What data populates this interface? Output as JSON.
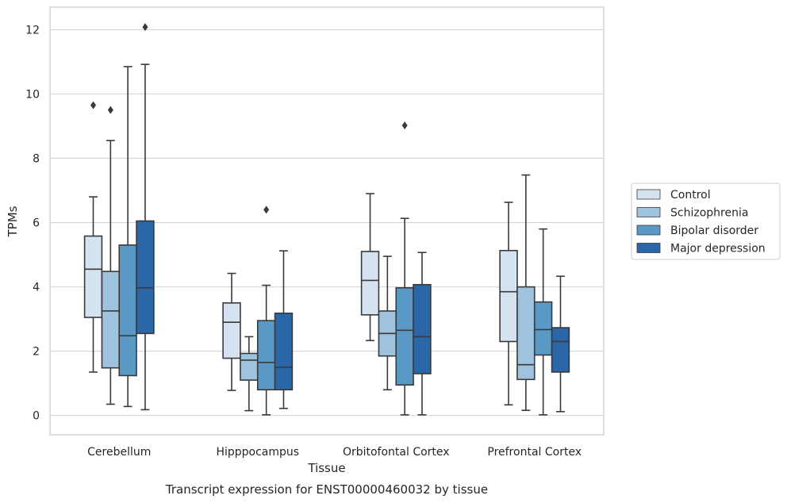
{
  "chart_data": {
    "type": "box",
    "xlabel": "Tissue",
    "ylabel": "TPMs",
    "caption": "Transcript expression for ENST00000460032 by tissue",
    "categories": [
      "Cerebellum",
      "Hipppocampus",
      "Orbitofontal Cortex",
      "Prefrontal Cortex"
    ],
    "ylim": [
      -0.6,
      12.7
    ],
    "yticks": [
      "0",
      "2",
      "4",
      "6",
      "8",
      "10",
      "12"
    ],
    "grid": "horizontal",
    "legend_position": "right",
    "series": [
      {
        "name": "Control",
        "color": "#d5e3f1",
        "boxes": [
          {
            "whislo": 1.35,
            "q1": 3.05,
            "med": 4.55,
            "q3": 5.58,
            "whishi": 6.8,
            "fliers": [
              9.65
            ]
          },
          {
            "whislo": 0.78,
            "q1": 1.78,
            "med": 2.9,
            "q3": 3.5,
            "whishi": 4.42,
            "fliers": []
          },
          {
            "whislo": 2.33,
            "q1": 3.13,
            "med": 4.2,
            "q3": 5.1,
            "whishi": 6.9,
            "fliers": []
          },
          {
            "whislo": 0.33,
            "q1": 2.3,
            "med": 3.85,
            "q3": 5.13,
            "whishi": 6.63,
            "fliers": []
          }
        ]
      },
      {
        "name": "Schizophrenia",
        "color": "#9dc3de",
        "boxes": [
          {
            "whislo": 0.35,
            "q1": 1.48,
            "med": 3.25,
            "q3": 4.48,
            "whishi": 8.55,
            "fliers": [
              9.5
            ]
          },
          {
            "whislo": 0.15,
            "q1": 1.1,
            "med": 1.72,
            "q3": 1.93,
            "whishi": 2.45,
            "fliers": []
          },
          {
            "whislo": 0.8,
            "q1": 1.85,
            "med": 2.55,
            "q3": 3.25,
            "whishi": 4.95,
            "fliers": []
          },
          {
            "whislo": 0.16,
            "q1": 1.12,
            "med": 1.58,
            "q3": 4.0,
            "whishi": 7.48,
            "fliers": []
          }
        ]
      },
      {
        "name": "Bipolar disorder",
        "color": "#5a99c5",
        "boxes": [
          {
            "whislo": 0.28,
            "q1": 1.24,
            "med": 2.48,
            "q3": 5.3,
            "whishi": 10.85,
            "fliers": []
          },
          {
            "whislo": 0.02,
            "q1": 0.8,
            "med": 1.65,
            "q3": 2.95,
            "whishi": 4.05,
            "fliers": [
              6.4
            ]
          },
          {
            "whislo": 0.02,
            "q1": 0.95,
            "med": 2.65,
            "q3": 3.97,
            "whishi": 6.13,
            "fliers": [
              9.02
            ]
          },
          {
            "whislo": 0.02,
            "q1": 1.88,
            "med": 2.67,
            "q3": 3.53,
            "whishi": 5.8,
            "fliers": []
          }
        ]
      },
      {
        "name": "Major depression",
        "color": "#2a66a8",
        "boxes": [
          {
            "whislo": 0.18,
            "q1": 2.55,
            "med": 3.97,
            "q3": 6.05,
            "whishi": 10.92,
            "fliers": [
              12.08
            ]
          },
          {
            "whislo": 0.22,
            "q1": 0.8,
            "med": 1.5,
            "q3": 3.18,
            "whishi": 5.12,
            "fliers": []
          },
          {
            "whislo": 0.02,
            "q1": 1.3,
            "med": 2.45,
            "q3": 4.07,
            "whishi": 5.07,
            "fliers": []
          },
          {
            "whislo": 0.12,
            "q1": 1.35,
            "med": 2.3,
            "q3": 2.73,
            "whishi": 4.33,
            "fliers": []
          }
        ]
      }
    ]
  }
}
